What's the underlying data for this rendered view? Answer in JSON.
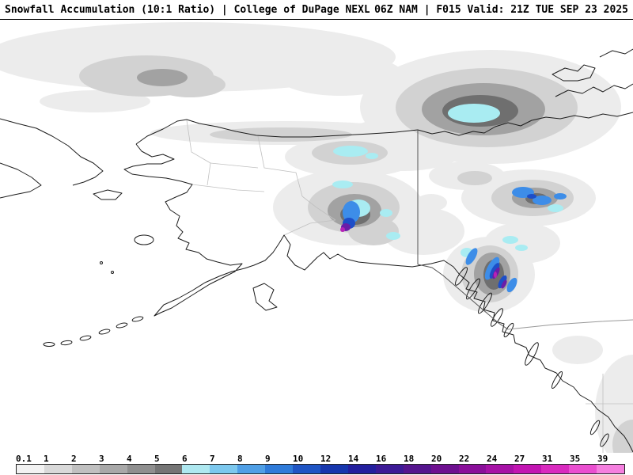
{
  "header": {
    "left": "Snowfall Accumulation (10:1 Ratio) | College of DuPage NEXLAB",
    "right": "06Z NAM | F015 Valid: 21Z TUE SEP 23 2025"
  },
  "colorbar": {
    "labels": [
      "0.1",
      "1",
      "2",
      "3",
      "4",
      "5",
      "6",
      "7",
      "8",
      "9",
      "10",
      "12",
      "14",
      "16",
      "18",
      "20",
      "22",
      "24",
      "27",
      "31",
      "35",
      "39"
    ],
    "colors": [
      "#f2f2f2",
      "#d9d9d9",
      "#c0c0c0",
      "#a8a8a8",
      "#8f8f8f",
      "#757575",
      "#aee8f0",
      "#7cc8ee",
      "#4f9fe6",
      "#2f7bd9",
      "#1f55c4",
      "#1636ad",
      "#231f9e",
      "#3c1a96",
      "#55158e",
      "#6e1090",
      "#8a0f9a",
      "#a612a6",
      "#c215b2",
      "#d92abf",
      "#ea4fd0",
      "#f57fdf"
    ]
  },
  "map": {
    "coastline_color": "#1c1c1c",
    "border_color": "#555555",
    "snow_gray_levels": [
      "#ececec",
      "#d2d2d2",
      "#a2a2a2",
      "#6f6f6f"
    ],
    "snow_accents": {
      "cyan": "#a9ecf2",
      "blue": "#3d8de8",
      "deep_blue": "#1d4ec8",
      "purple": "#6a1da8",
      "magenta": "#b722b7"
    }
  }
}
